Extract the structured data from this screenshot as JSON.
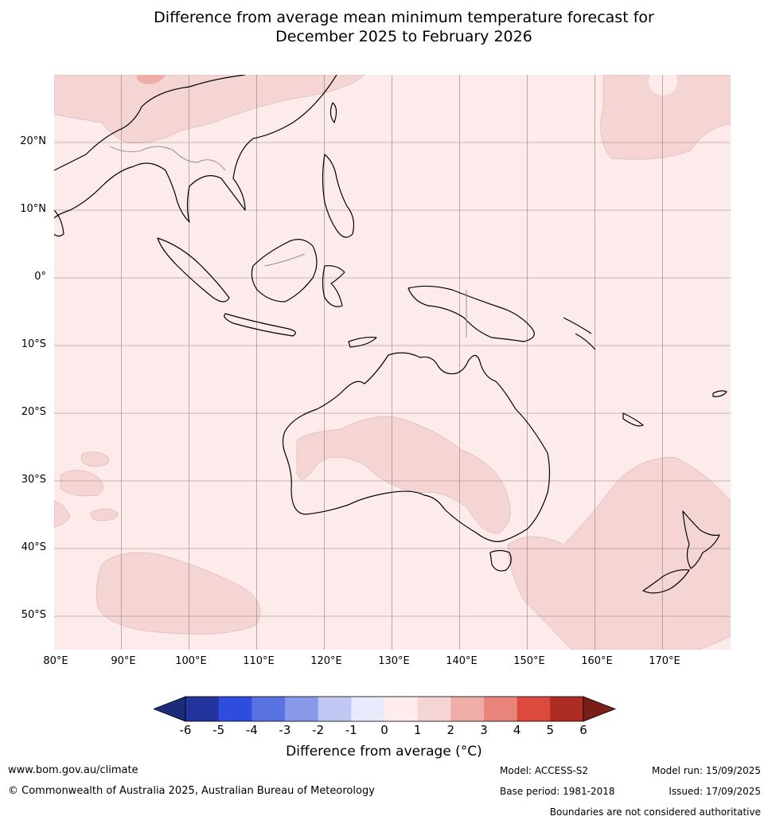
{
  "title": {
    "line1": "Difference from average mean minimum temperature forecast for",
    "line2": "December 2025 to February 2026"
  },
  "map": {
    "region": "Australia and surrounding region",
    "lat_labels": [
      "20°N",
      "10°N",
      "0°",
      "10°S",
      "20°S",
      "30°S",
      "40°S",
      "50°S"
    ],
    "lon_labels": [
      "80°E",
      "90°E",
      "100°E",
      "110°E",
      "120°E",
      "130°E",
      "140°E",
      "150°E",
      "160°E",
      "170°E"
    ],
    "background_class_color": "#fcebea",
    "anomaly_colors": {
      "0_to_1": "#fcebea",
      "1_to_2": "#f5d5d4",
      "2_to_3": "#eeada7",
      "3_to_4": "#e88479"
    }
  },
  "colorbar": {
    "ticks": [
      "-6",
      "-5",
      "-4",
      "-3",
      "-2",
      "-1",
      "0",
      "1",
      "2",
      "3",
      "4",
      "5",
      "6"
    ],
    "colors": [
      "#24349e",
      "#2e4dde",
      "#5873e0",
      "#8899e9",
      "#bfc7f2",
      "#e8ebfb",
      "#fdeceb",
      "#f5d5d4",
      "#eeada7",
      "#e88479",
      "#dc4a3d",
      "#ac2b22"
    ],
    "under_color": "#1c2c7a",
    "over_color": "#7a1e1a",
    "label": "Difference from average (°C)"
  },
  "footer": {
    "website": "www.bom.gov.au/climate",
    "copyright": "© Commonwealth of Australia 2025, Australian Bureau of Meteorology",
    "model": "Model: ACCESS-S2",
    "base_period": "Base period: 1981-2018",
    "model_run": "Model run: 15/09/2025",
    "issued": "Issued: 17/09/2025",
    "disclaimer": "Boundaries are not considered authoritative"
  }
}
